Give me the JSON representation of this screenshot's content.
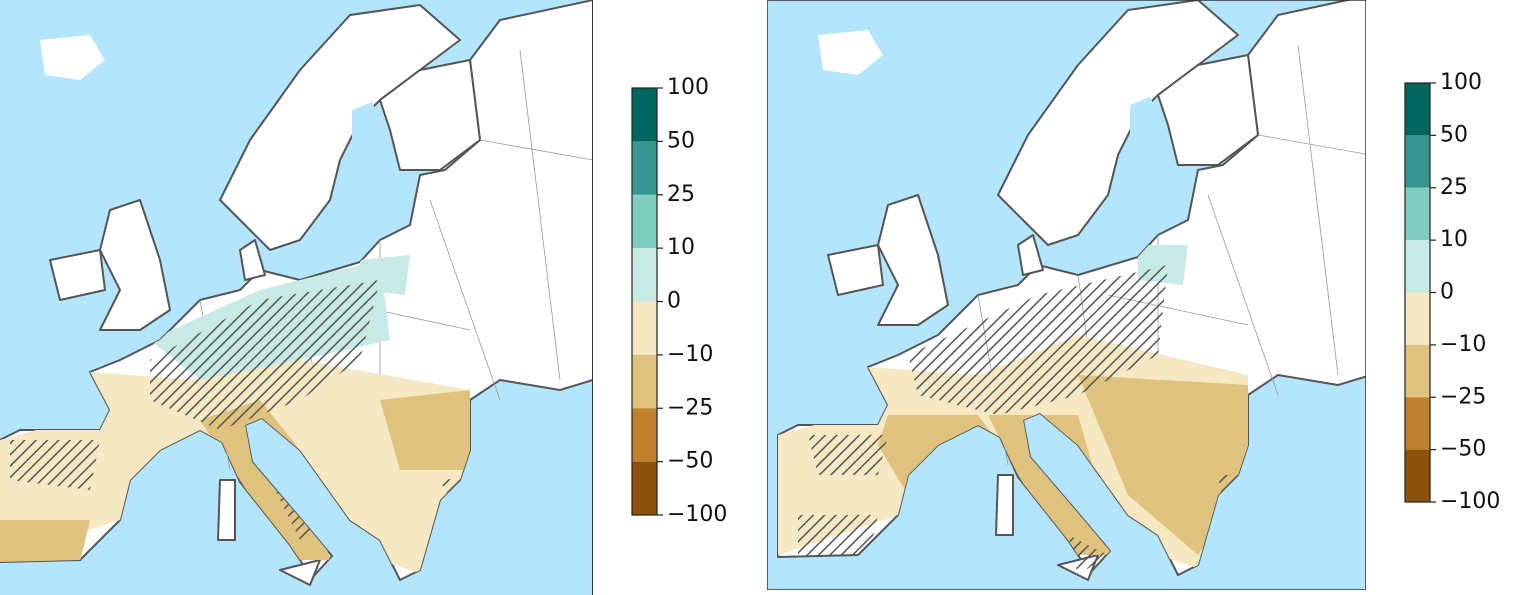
{
  "panels": [
    {
      "colorbar": {
        "ticks": [
          100,
          50,
          25,
          10,
          0,
          {
            "value": -10,
            "label": "−10"
          },
          {
            "value": -25,
            "label": "−25"
          },
          {
            "value": -50,
            "label": "−50"
          },
          {
            "value": -100,
            "label": "−100"
          }
        ],
        "colors": [
          "#01665e",
          "#35978f",
          "#80cdc1",
          "#c7eae5",
          "#f6e8c3",
          "#dfc27d",
          "#bf812d",
          "#8c510a"
        ]
      }
    },
    {
      "colorbar": {
        "ticks": [
          100,
          50,
          25,
          10,
          0,
          {
            "value": -10,
            "label": "−10"
          },
          {
            "value": -25,
            "label": "−25"
          },
          {
            "value": -50,
            "label": "−50"
          },
          {
            "value": -100,
            "label": "−100"
          }
        ],
        "colors": [
          "#01665e",
          "#35978f",
          "#80cdc1",
          "#c7eae5",
          "#f6e8c3",
          "#dfc27d",
          "#bf812d",
          "#8c510a"
        ]
      }
    }
  ]
}
